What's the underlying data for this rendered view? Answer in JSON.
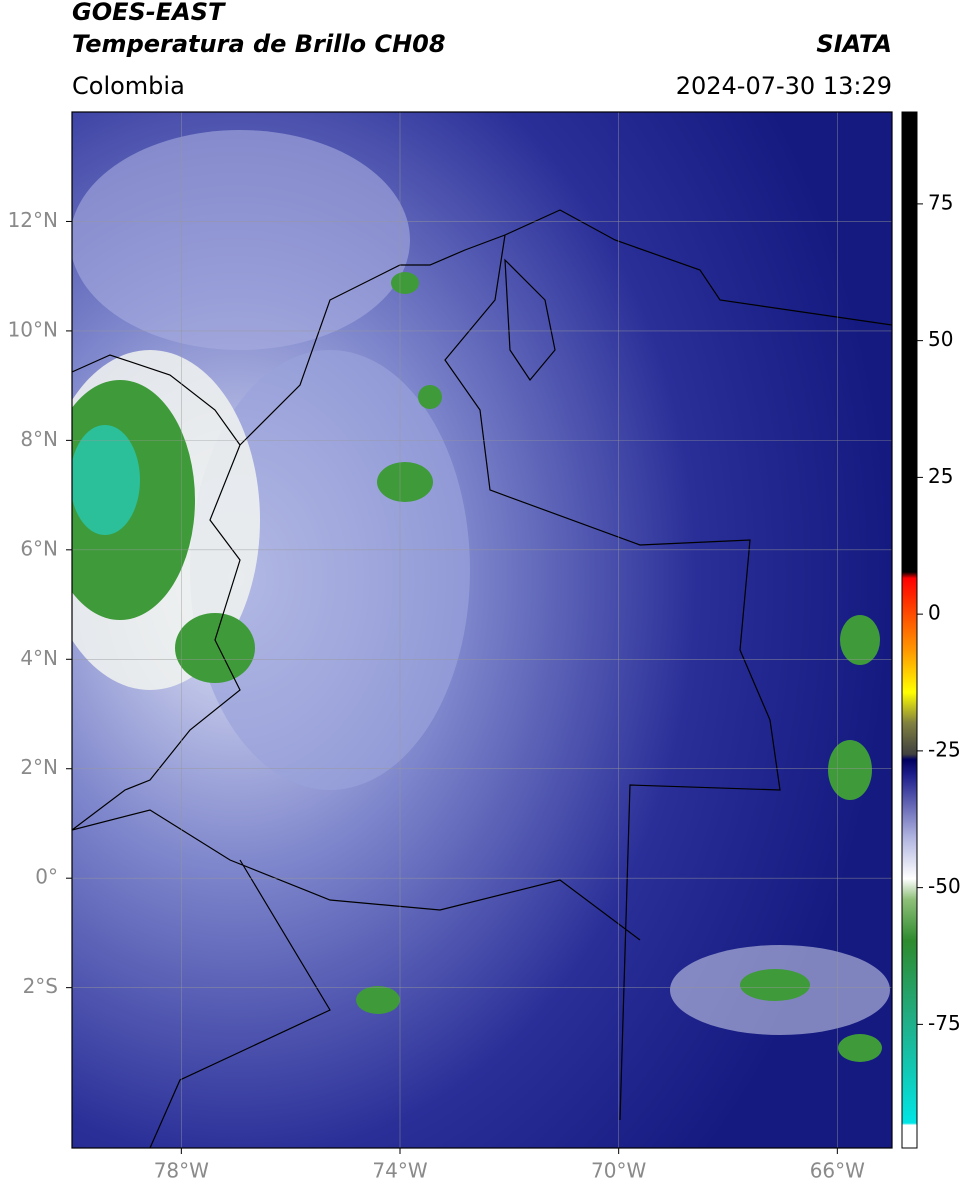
{
  "header": {
    "title": "GOES-EAST",
    "subtitle": "Temperatura de Brillo CH08",
    "source": "SIATA",
    "region": "Colombia",
    "datetime": "2024-07-30 13:29"
  },
  "map": {
    "lon_range": [
      -80,
      -65
    ],
    "lat_range": [
      -4.93,
      14
    ],
    "lon_ticks": [
      {
        "value": -78,
        "label": "78°W"
      },
      {
        "value": -74,
        "label": "74°W"
      },
      {
        "value": -70,
        "label": "70°W"
      },
      {
        "value": -66,
        "label": "66°W"
      }
    ],
    "lat_ticks": [
      {
        "value": 12,
        "label": "12°N"
      },
      {
        "value": 10,
        "label": "10°N"
      },
      {
        "value": 8,
        "label": "8°N"
      },
      {
        "value": 6,
        "label": "6°N"
      },
      {
        "value": 4,
        "label": "4°N"
      },
      {
        "value": 2,
        "label": "2°N"
      },
      {
        "value": 0,
        "label": "0°"
      },
      {
        "value": -2,
        "label": "2°S"
      }
    ]
  },
  "colorbar": {
    "range": [
      -97.6,
      91.8
    ],
    "ticks": [
      75,
      50,
      25,
      0,
      -25,
      -50,
      -75
    ]
  }
}
